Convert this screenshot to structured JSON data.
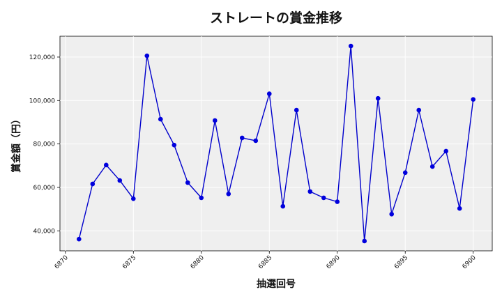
{
  "chart_data": {
    "type": "line",
    "title": "ストレートの賞金推移",
    "xlabel": "抽選回号",
    "ylabel": "賞金額（円）",
    "x": [
      6871,
      6872,
      6873,
      6874,
      6875,
      6876,
      6877,
      6878,
      6879,
      6880,
      6881,
      6882,
      6883,
      6884,
      6885,
      6886,
      6887,
      6888,
      6889,
      6890,
      6891,
      6892,
      6893,
      6894,
      6895,
      6896,
      6897,
      6898,
      6899,
      6900
    ],
    "series": [
      {
        "values": [
          36200,
          61600,
          70300,
          63200,
          54800,
          120600,
          91400,
          79500,
          62200,
          55200,
          90800,
          57000,
          82800,
          81500,
          103100,
          51300,
          95600,
          58100,
          55200,
          53400,
          125100,
          35300,
          101000,
          47700,
          66800,
          95600,
          69600,
          76700,
          50300,
          100500
        ]
      }
    ],
    "x_ticks": [
      "6870",
      "6875",
      "6880",
      "6885",
      "6890",
      "6895",
      "6900"
    ],
    "y_ticks": [
      "40,000",
      "60,000",
      "80,000",
      "100,000",
      "120,000"
    ],
    "xlim": [
      6869.6,
      6901.4
    ],
    "ylim": [
      30800,
      129600
    ],
    "grid": true,
    "line_color": "#0000cc",
    "marker_color": "#0000dd",
    "plot_bg": "#efefef"
  }
}
